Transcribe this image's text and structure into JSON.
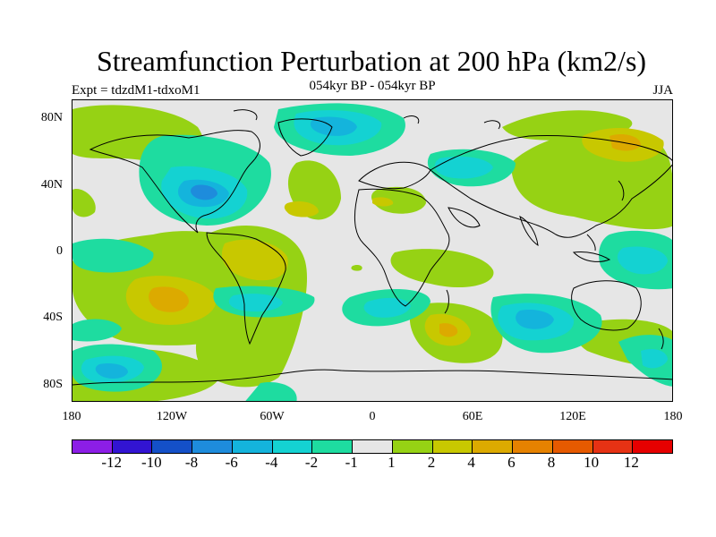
{
  "header": {
    "title": "Streamfunction Perturbation at 200 hPa (km2/s)",
    "experiment": "Expt = tdzdM1-tdxoM1",
    "period": "054kyr BP - 054kyr BP",
    "season": "JJA"
  },
  "map": {
    "projection": "cylindrical-equidistant",
    "background_color": "#e6e6e6",
    "lat_labels": [
      "80N",
      "40N",
      "0",
      "40S",
      "80S"
    ],
    "lon_labels": [
      "180",
      "120W",
      "60W",
      "0",
      "60E",
      "120E",
      "180"
    ]
  },
  "colorbar": {
    "labels": [
      "-12",
      "-10",
      "-8",
      "-6",
      "-4",
      "-2",
      "-1",
      "1",
      "2",
      "4",
      "6",
      "8",
      "10",
      "12"
    ],
    "colors": [
      "#8c1ee6",
      "#3214d2",
      "#1450c8",
      "#1e8cdc",
      "#14b4dc",
      "#14d2d2",
      "#1edca0",
      "#e6e6e6",
      "#96d214",
      "#c8c800",
      "#dcaa00",
      "#e68200",
      "#e65a00",
      "#e63214",
      "#e60000"
    ]
  }
}
